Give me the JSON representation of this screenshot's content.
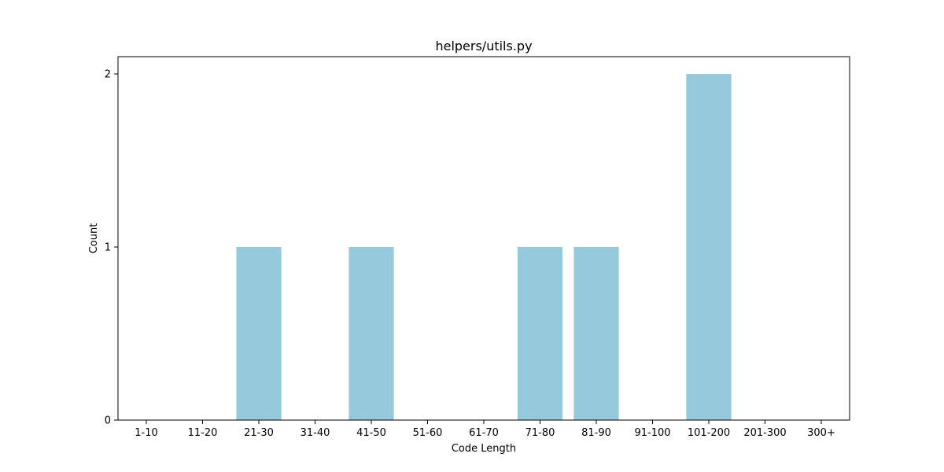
{
  "chart_data": {
    "type": "bar",
    "title": "helpers/utils.py",
    "xlabel": "Code Length",
    "ylabel": "Count",
    "categories": [
      "1-10",
      "11-20",
      "21-30",
      "31-40",
      "41-50",
      "51-60",
      "61-70",
      "71-80",
      "81-90",
      "91-100",
      "101-200",
      "201-300",
      "300+"
    ],
    "values": [
      0,
      0,
      1,
      0,
      1,
      0,
      0,
      1,
      1,
      0,
      2,
      0,
      0
    ],
    "ylim": [
      0,
      2.1
    ],
    "yticks": [
      0,
      1,
      2
    ],
    "grid": false,
    "bar_color": "#96c9dc"
  }
}
